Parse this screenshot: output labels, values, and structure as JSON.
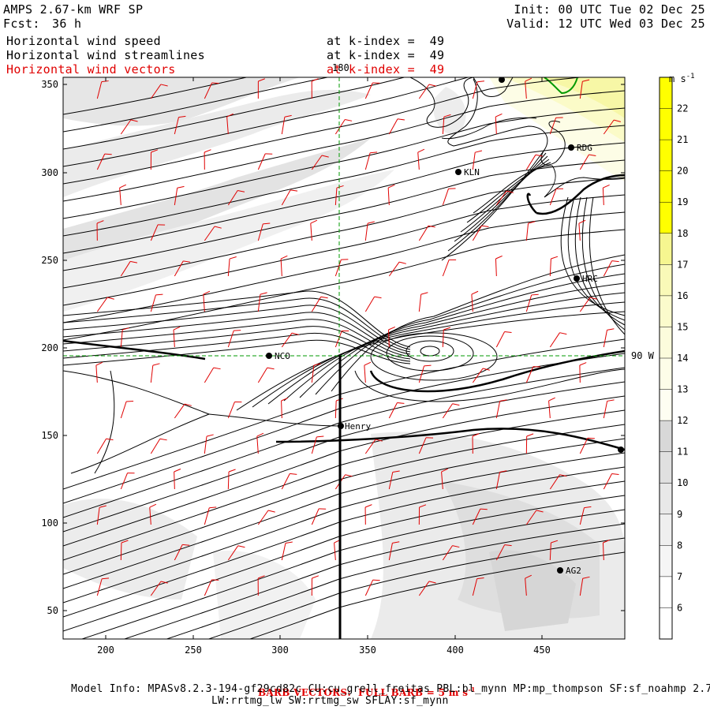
{
  "header": {
    "model_title": "AMPS 2.67-km WRF SP",
    "forecast_label": "Fcst:",
    "forecast_hours": "36 h",
    "init": "Init: 00 UTC Tue 02 Dec 25",
    "valid": "Valid: 12 UTC Wed 03 Dec 25"
  },
  "fields": [
    {
      "name": "Horizontal wind speed",
      "level": "at k-index =  49",
      "color": "#000000"
    },
    {
      "name": "Horizontal wind streamlines",
      "level": "at k-index =  49",
      "color": "#000000"
    },
    {
      "name": "Horizontal wind vectors",
      "level": "at k-index =  49",
      "color": "#e00000"
    }
  ],
  "axes": {
    "x_ticks": [
      "200",
      "250",
      "300",
      "350",
      "400",
      "450"
    ],
    "y_ticks": [
      "350",
      "300",
      "250",
      "200",
      "150",
      "100",
      "50"
    ]
  },
  "grid_labels": {
    "meridian": "180",
    "lon_line": "90 W"
  },
  "colorbar": {
    "unit_base": "m s",
    "unit_exp": "-1",
    "levels": [
      "22",
      "21",
      "20",
      "19",
      "18",
      "17",
      "16",
      "15",
      "14",
      "13",
      "12",
      "11",
      "10",
      "9",
      "8",
      "7",
      "6"
    ],
    "colors": [
      "#ffff00",
      "#ffff00",
      "#ffff00",
      "#ffff00",
      "#ffff00",
      "#f6f690",
      "#f9f9b8",
      "#fbfbcc",
      "#fcfcdc",
      "#fdfde8",
      "#fefef2",
      "#d8d8d8",
      "#e0e0e0",
      "#e8e8e8",
      "#efefef",
      "#f5f5f5",
      "#ffffff"
    ]
  },
  "stations": [
    {
      "id": "NCO",
      "label": "NCO"
    },
    {
      "id": "KLN",
      "label": "KLN"
    },
    {
      "id": "RDG",
      "label": "RDG"
    },
    {
      "id": "HRC",
      "label": "HRC"
    },
    {
      "id": "Henry",
      "label": "Henry"
    },
    {
      "id": "AG2",
      "label": "AG2"
    }
  ],
  "footer": {
    "barb_note_prefix": "BARB VECTORS:  FULL BARB = 5 m s",
    "barb_note_exp": "-1",
    "model_info_1": "Model Info: MPASv8.2.3-194-gf29cd82c CU:cu_grell_freitas PBL:bl_mynn MP:mp_thompson SF:sf_noahmp 2.7",
    "model_info_2": "LW:rrtmg_lw SW:rrtmg_sw SFLAY:sf_mynn"
  }
}
